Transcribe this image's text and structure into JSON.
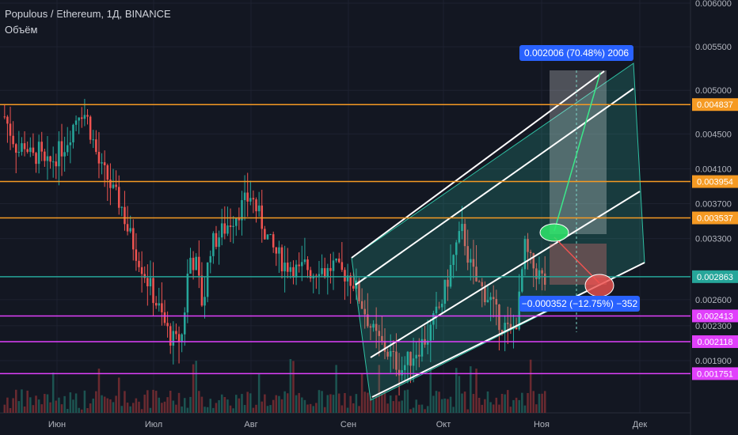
{
  "header": {
    "symbol_line": "Populous / Ethereum, 1Д, BINANCE",
    "volume_label": "Объём"
  },
  "colors": {
    "background": "#131722",
    "up": "#26a69a",
    "down": "#ef5350",
    "orange_line": "#f59a23",
    "magenta_line": "#e040fb",
    "green_line": "#26a69a",
    "channel_fill": "#2fbfa3",
    "label_blue": "#2962ff"
  },
  "chart_data": {
    "type": "candlestick",
    "title": "Populous / Ethereum, 1Д, BINANCE",
    "ylim": [
      0.0016,
      0.006
    ],
    "y_ticks": [
      "0.006000",
      "0.005500",
      "0.005000",
      "0.004500",
      "0.004100",
      "0.003700",
      "0.003300",
      "0.002600",
      "0.002300",
      "0.001900"
    ],
    "x_ticks": [
      "Июн",
      "Июл",
      "Авг",
      "Сен",
      "Окт",
      "Ноя",
      "Дек"
    ],
    "horizontal_levels": [
      {
        "value": "0.004837",
        "color": "#f59a23"
      },
      {
        "value": "0.003954",
        "color": "#f59a23"
      },
      {
        "value": "0.003537",
        "color": "#f59a23"
      },
      {
        "value": "0.002863",
        "color": "#26a69a"
      },
      {
        "value": "0.002413",
        "color": "#e040fb"
      },
      {
        "value": "0.002118",
        "color": "#e040fb"
      },
      {
        "value": "0.001751",
        "color": "#e040fb"
      }
    ],
    "price_path": [
      0.0047,
      0.0045,
      0.0043,
      0.0044,
      0.0042,
      0.0043,
      0.0041,
      0.0042,
      0.0043,
      0.0044,
      0.0046,
      0.0048,
      0.0047,
      0.0044,
      0.0041,
      0.004,
      0.0038,
      0.0037,
      0.0034,
      0.0032,
      0.003,
      0.0028,
      0.0026,
      0.0024,
      0.0022,
      0.0021,
      0.0022,
      0.0031,
      0.003,
      0.0025,
      0.0032,
      0.0033,
      0.0034,
      0.0035,
      0.0036,
      0.0037,
      0.0038,
      0.0036,
      0.0034,
      0.0032,
      0.0031,
      0.003,
      0.003,
      0.0029,
      0.003,
      0.0029,
      0.003,
      0.0029,
      0.003,
      0.0029,
      0.0029,
      0.0028,
      0.0026,
      0.0024,
      0.0022,
      0.0021,
      0.002,
      0.0019,
      0.0018,
      0.0019,
      0.002,
      0.0021,
      0.0022,
      0.0024,
      0.0026,
      0.0029,
      0.0032,
      0.0034,
      0.003,
      0.0028,
      0.0027,
      0.0026,
      0.0024,
      0.0023,
      0.0022,
      0.0024,
      0.0032,
      0.003,
      0.0029,
      0.0028
    ],
    "projection_up": "0.002006 (70.48%) 2006",
    "projection_down": "−0.000352 (−12.75%) −352"
  }
}
